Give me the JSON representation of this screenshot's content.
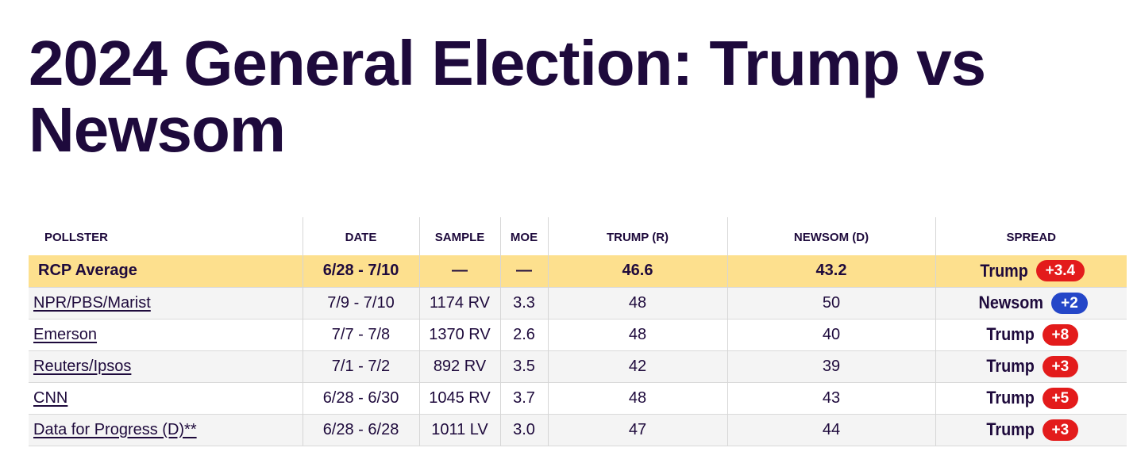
{
  "page": {
    "title": "2024 General Election: Trump vs Newsom"
  },
  "colors": {
    "title": "#1e0a3c",
    "average_row": "#fde08e",
    "republican": "#e31b1b",
    "democrat": "#2446c8",
    "shaded_row": "#f4f4f4"
  },
  "table": {
    "headers": [
      "Pollster",
      "Date",
      "Sample",
      "MoE",
      "Trump (R)",
      "Newsom (D)",
      "Spread"
    ],
    "rows": [
      {
        "pollster": "RCP Average",
        "date": "6/28 - 7/10",
        "sample": "—",
        "moe": "—",
        "trump": "46.6",
        "newsom": "43.2",
        "spread_candidate": "Trump",
        "spread_value": "+3.4",
        "spread_party": "republican"
      },
      {
        "pollster": "NPR/PBS/Marist",
        "date": "7/9 - 7/10",
        "sample": "1174 RV",
        "moe": "3.3",
        "trump": "48",
        "newsom": "50",
        "spread_candidate": "Newsom",
        "spread_value": "+2",
        "spread_party": "democrat"
      },
      {
        "pollster": "Emerson",
        "date": "7/7 - 7/8",
        "sample": "1370 RV",
        "moe": "2.6",
        "trump": "48",
        "newsom": "40",
        "spread_candidate": "Trump",
        "spread_value": "+8",
        "spread_party": "republican"
      },
      {
        "pollster": "Reuters/Ipsos",
        "date": "7/1 - 7/2",
        "sample": "892 RV",
        "moe": "3.5",
        "trump": "42",
        "newsom": "39",
        "spread_candidate": "Trump",
        "spread_value": "+3",
        "spread_party": "republican"
      },
      {
        "pollster": "CNN",
        "date": "6/28 - 6/30",
        "sample": "1045 RV",
        "moe": "3.7",
        "trump": "48",
        "newsom": "43",
        "spread_candidate": "Trump",
        "spread_value": "+5",
        "spread_party": "republican"
      },
      {
        "pollster": "Data for Progress (D)**",
        "date": "6/28 - 6/28",
        "sample": "1011 LV",
        "moe": "3.0",
        "trump": "47",
        "newsom": "44",
        "spread_candidate": "Trump",
        "spread_value": "+3",
        "spread_party": "republican"
      }
    ]
  }
}
